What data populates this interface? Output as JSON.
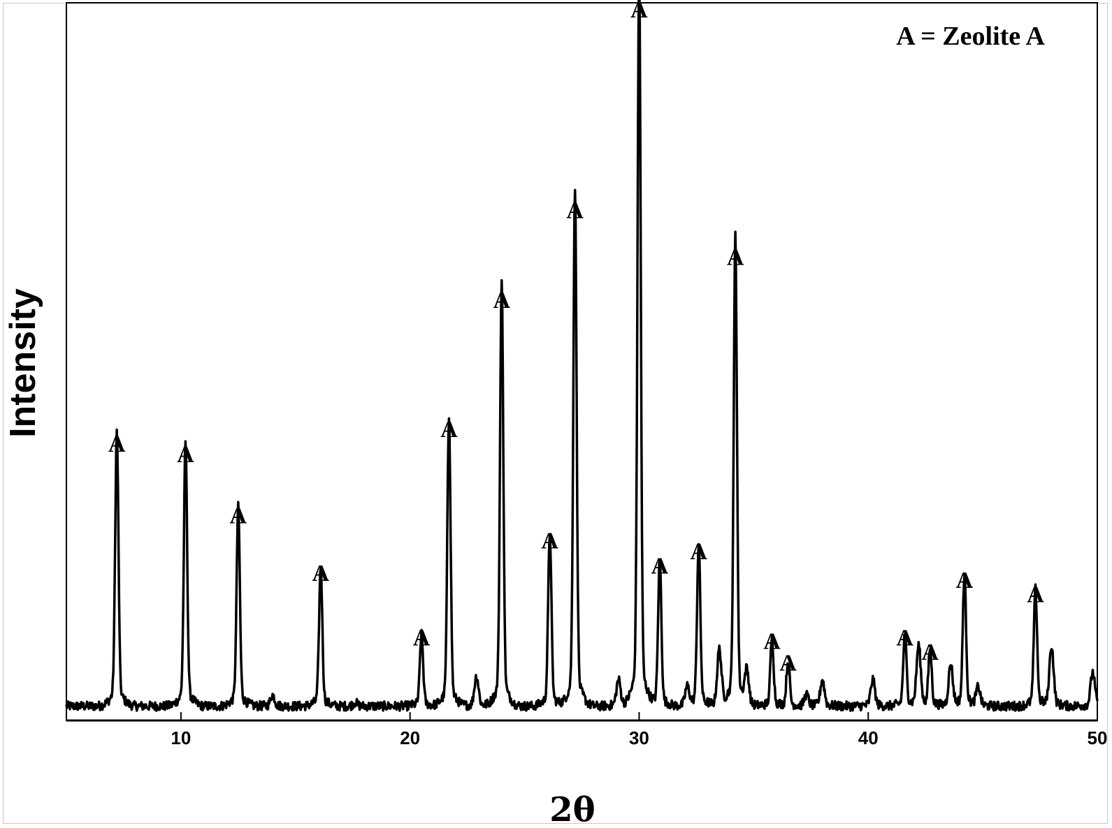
{
  "chart_data": {
    "type": "line",
    "title": "",
    "xlabel": "2θ",
    "ylabel": "Intensity",
    "xlim": [
      5,
      50
    ],
    "ylim": [
      0,
      100
    ],
    "x_ticks": [
      "10",
      "20",
      "30",
      "40",
      "50"
    ],
    "x_tick_values": [
      10,
      20,
      30,
      40,
      50
    ],
    "grid": false,
    "legend": {
      "text": "A = Zeolite A",
      "placement": "top-right"
    },
    "peak_label_text": "A",
    "peaks": [
      {
        "x": 7.2,
        "y": 36.5
      },
      {
        "x": 10.2,
        "y": 35.0
      },
      {
        "x": 12.5,
        "y": 26.5
      },
      {
        "x": 16.1,
        "y": 18.5
      },
      {
        "x": 20.5,
        "y": 9.5
      },
      {
        "x": 21.7,
        "y": 38.5
      },
      {
        "x": 24.0,
        "y": 56.5
      },
      {
        "x": 26.1,
        "y": 23.0
      },
      {
        "x": 27.2,
        "y": 69.0
      },
      {
        "x": 30.0,
        "y": 97.0
      },
      {
        "x": 30.9,
        "y": 19.5
      },
      {
        "x": 32.6,
        "y": 21.5
      },
      {
        "x": 34.2,
        "y": 62.5
      },
      {
        "x": 35.8,
        "y": 9.0
      },
      {
        "x": 36.5,
        "y": 6.0
      },
      {
        "x": 41.6,
        "y": 9.5
      },
      {
        "x": 42.7,
        "y": 7.5
      },
      {
        "x": 44.2,
        "y": 17.5
      },
      {
        "x": 47.3,
        "y": 15.5
      }
    ],
    "minor_peaks": [
      {
        "x": 14.0,
        "y": 1.5
      },
      {
        "x": 17.6,
        "y": 0.5
      },
      {
        "x": 22.9,
        "y": 4.0
      },
      {
        "x": 29.1,
        "y": 3.5
      },
      {
        "x": 32.1,
        "y": 2.5
      },
      {
        "x": 33.5,
        "y": 7.5
      },
      {
        "x": 34.7,
        "y": 4.5
      },
      {
        "x": 37.3,
        "y": 1.5
      },
      {
        "x": 38.0,
        "y": 3.5
      },
      {
        "x": 40.2,
        "y": 3.5
      },
      {
        "x": 42.2,
        "y": 8.0
      },
      {
        "x": 43.6,
        "y": 5.5
      },
      {
        "x": 44.8,
        "y": 2.5
      },
      {
        "x": 48.0,
        "y": 8.0
      },
      {
        "x": 49.8,
        "y": 4.5
      }
    ],
    "baseline": 2.0,
    "series_color": "#000000"
  }
}
